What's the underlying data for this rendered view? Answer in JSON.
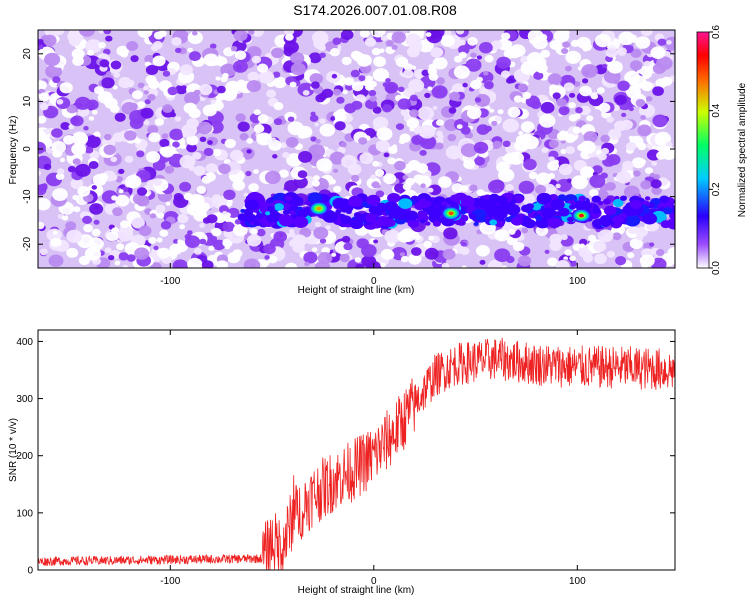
{
  "page": {
    "title": "S174.2026.007.01.08.R08"
  },
  "chart_data": [
    {
      "type": "heatmap",
      "title": "S174.2026.007.01.08.R08",
      "xlabel": "Height of straight line (km)",
      "ylabel": "Frequency (Hz)",
      "xlim": [
        -165,
        148
      ],
      "ylim": [
        -25,
        25
      ],
      "xticks": [
        -100,
        0,
        100
      ],
      "xtick_labels": [
        "-100",
        "0",
        "100"
      ],
      "yticks": [
        -20,
        -10,
        0,
        10,
        20
      ],
      "ytick_labels": [
        "-20",
        "-10",
        "0",
        "10",
        "20"
      ],
      "signal_band": {
        "freq_center": -13,
        "freq_width": 4,
        "onset_x": -65
      },
      "peaks": [
        {
          "x": -27,
          "y": -12.5,
          "amplitude": 0.45
        },
        {
          "x": 38,
          "y": -13.5,
          "amplitude": 0.5
        },
        {
          "x": 102,
          "y": -14,
          "amplitude": 0.55
        }
      ],
      "colorbar": {
        "label": "Normalized spectral amplitude",
        "range": [
          0.0,
          0.6
        ],
        "ticks": [
          0.0,
          0.2,
          0.4,
          0.6
        ],
        "tick_labels": [
          "0.0",
          "0.2",
          "0.4",
          "0.6"
        ],
        "colors": [
          "#ffffff",
          "#8a2be2",
          "#0000ff",
          "#00ffff",
          "#00ff00",
          "#ffff00",
          "#ff0000",
          "#ff1493"
        ]
      }
    },
    {
      "type": "line",
      "xlabel": "Height of straight line (km)",
      "ylabel": "SNR (10 * v/v)",
      "xlim": [
        -165,
        148
      ],
      "ylim": [
        0,
        420
      ],
      "xticks": [
        -100,
        0,
        100
      ],
      "xtick_labels": [
        "-100",
        "0",
        "100"
      ],
      "yticks": [
        0,
        100,
        200,
        300,
        400
      ],
      "ytick_labels": [
        "0",
        "100",
        "200",
        "300",
        "400"
      ],
      "color": "#ee2222",
      "series_profile": {
        "x": [
          -165,
          -55,
          -50,
          -45,
          -40,
          -30,
          -20,
          -10,
          0,
          10,
          20,
          30,
          40,
          60,
          80,
          100,
          120,
          148
        ],
        "y": [
          15,
          20,
          50,
          40,
          90,
          130,
          155,
          175,
          200,
          240,
          290,
          340,
          360,
          370,
          360,
          355,
          355,
          350
        ]
      }
    }
  ]
}
